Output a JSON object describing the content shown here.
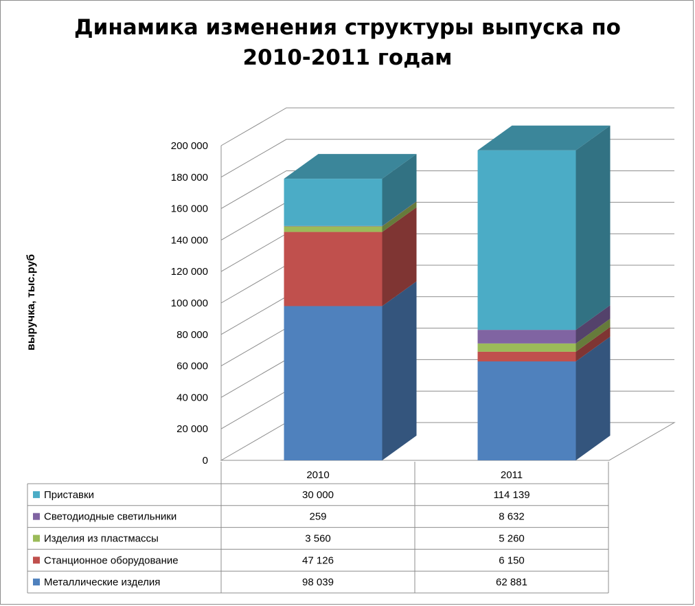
{
  "chart_data": {
    "type": "bar",
    "stacked": true,
    "three_d": true,
    "title_line1": "Динамика изменения структуры выпуска по",
    "title_line2": "2010-2011 годам",
    "ylabel": "выручка, тыс.руб",
    "xlabel": "",
    "ylim": [
      0,
      200000
    ],
    "y_ticks": [
      "0",
      "20 000",
      "40 000",
      "60 000",
      "80 000",
      "100 000",
      "120 000",
      "140 000",
      "160 000",
      "180 000",
      "200 000"
    ],
    "grid": true,
    "legend": "data-table-below",
    "categories": [
      "2010",
      "2011"
    ],
    "series": [
      {
        "name": "Металлические изделия",
        "color": "#4F81BD",
        "values": [
          98039,
          62881
        ],
        "labels": [
          "98 039",
          "62 881"
        ]
      },
      {
        "name": "Станционное оборудование",
        "color": "#C0504D",
        "values": [
          47126,
          6150
        ],
        "labels": [
          "47 126",
          "6 150"
        ]
      },
      {
        "name": "Изделия из пластмассы",
        "color": "#9BBB59",
        "values": [
          3560,
          5260
        ],
        "labels": [
          "3 560",
          "5 260"
        ]
      },
      {
        "name": "Светодиодные светильники",
        "color": "#8064A2",
        "values": [
          259,
          8632
        ],
        "labels": [
          "259",
          "8 632"
        ]
      },
      {
        "name": "Приставки",
        "color": "#4BACC6",
        "values": [
          30000,
          114139
        ],
        "labels": [
          "30 000",
          "114 139"
        ]
      }
    ]
  }
}
